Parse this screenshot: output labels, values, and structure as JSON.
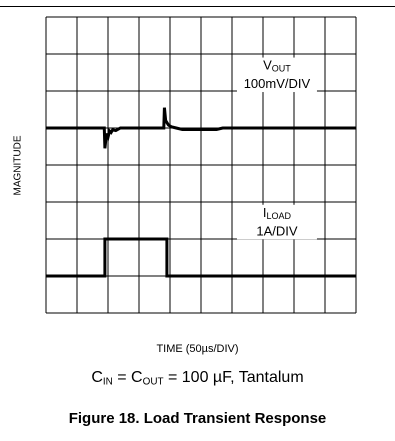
{
  "chart_data": {
    "type": "line",
    "title": "",
    "xlabel": "TIME (50µs/DIV)",
    "ylabel": "MAGNITUDE",
    "grid": true,
    "divisions": {
      "x": 10,
      "y": 8
    },
    "x_unit": "div",
    "series": [
      {
        "name": "VOUT",
        "name_main": "V",
        "name_sub": "OUT",
        "scale": "100mV/DIV",
        "baseline_div": 5.0,
        "points": [
          [
            0,
            5.0
          ],
          [
            1.88,
            5.0
          ],
          [
            1.9,
            4.45
          ],
          [
            1.95,
            4.85
          ],
          [
            2.0,
            4.75
          ],
          [
            2.05,
            4.92
          ],
          [
            2.1,
            4.88
          ],
          [
            2.15,
            4.95
          ],
          [
            2.25,
            4.93
          ],
          [
            2.4,
            5.0
          ],
          [
            3.8,
            5.0
          ],
          [
            3.82,
            5.55
          ],
          [
            3.86,
            5.2
          ],
          [
            3.95,
            5.08
          ],
          [
            4.05,
            5.03
          ],
          [
            4.2,
            5.0
          ],
          [
            4.4,
            4.96
          ],
          [
            5.5,
            4.96
          ],
          [
            5.7,
            5.0
          ],
          [
            10,
            5.0
          ]
        ]
      },
      {
        "name": "ILOAD",
        "name_main": "I",
        "name_sub": "LOAD",
        "scale": "1A/DIV",
        "baseline_div": 1.0,
        "points": [
          [
            0,
            1.0
          ],
          [
            1.9,
            1.0
          ],
          [
            1.9,
            2.0
          ],
          [
            3.9,
            2.0
          ],
          [
            3.9,
            1.0
          ],
          [
            10,
            1.0
          ]
        ]
      }
    ]
  },
  "conditions": {
    "cin_main": "C",
    "cin_sub": "IN",
    "eq1": " = ",
    "cout_main": "C",
    "cout_sub": "OUT",
    "rest": " = 100 µF, Tantalum"
  },
  "figure_caption": "Figure 18. Load Transient Response"
}
